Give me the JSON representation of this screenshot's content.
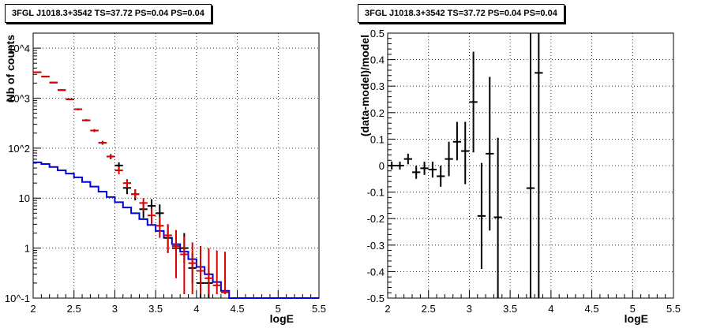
{
  "chart_data": [
    {
      "type": "line",
      "title": "3FGL J1018.3+3542 TS=37.72 PS=0.04 PS=0.04",
      "xlabel": "logE",
      "ylabel": "Nb of counts",
      "log_y": true,
      "xlim": [
        2,
        5.5
      ],
      "ylim": [
        0.1,
        20000
      ],
      "grid": true,
      "x_ticks": [
        "2",
        "2.5",
        "3",
        "3.5",
        "4",
        "4.5",
        "5",
        "5.5"
      ],
      "y_ticks": [
        "10^-1",
        "1",
        "10",
        "10^2",
        "10^3",
        "10^4"
      ],
      "series": [
        {
          "role": "model-step",
          "color": "#0000dd",
          "bin_edges": [
            2.0,
            2.1,
            2.2,
            2.3,
            2.4,
            2.5,
            2.6,
            2.7,
            2.8,
            2.9,
            3.0,
            3.1,
            3.2,
            3.3,
            3.4,
            3.5,
            3.6,
            3.7,
            3.8,
            3.9,
            4.0,
            4.1,
            4.2,
            4.3,
            4.4,
            4.5,
            4.6,
            4.7,
            4.8,
            4.9,
            5.0,
            5.1,
            5.2,
            5.3,
            5.4,
            5.5
          ],
          "values": [
            52,
            48,
            42,
            36,
            31,
            26,
            21,
            17,
            13.5,
            10.5,
            8.3,
            6.5,
            5.0,
            3.8,
            2.9,
            2.2,
            1.6,
            1.2,
            0.85,
            0.6,
            0.42,
            0.3,
            0.21,
            0.14,
            0.1,
            0.1,
            0.1,
            0.1,
            0.1,
            0.1,
            0.1,
            0.1,
            0.1,
            0.1,
            0.1
          ]
        },
        {
          "role": "data-points",
          "color": "#000000",
          "x": [
            2.05,
            2.15,
            2.25,
            2.35,
            2.45,
            2.55,
            2.65,
            2.75,
            2.85,
            2.95,
            3.05,
            3.15,
            3.25,
            3.35,
            3.45,
            3.55,
            3.65,
            3.75,
            3.85,
            3.95,
            4.05,
            4.15
          ],
          "y": [
            3300,
            2700,
            2050,
            1450,
            950,
            600,
            360,
            225,
            128,
            68,
            45,
            16,
            12,
            6,
            7,
            5,
            1.6,
            1.0,
            1.0,
            0.4,
            0.2,
            0.2
          ],
          "y_low": [
            3200,
            2620,
            1990,
            1400,
            920,
            575,
            342,
            211,
            117,
            60,
            38,
            12,
            9,
            4,
            4.8,
            3,
            0.8,
            0.5,
            0.5,
            0.2,
            0.1,
            0.1
          ],
          "y_high": [
            3400,
            2780,
            2110,
            1500,
            980,
            625,
            378,
            239,
            139,
            76,
            52,
            20,
            15,
            8,
            9.5,
            7.5,
            3,
            2,
            2,
            0.8,
            0.4,
            0.4
          ]
        },
        {
          "role": "model-points",
          "color": "#dd0000",
          "x": [
            2.05,
            2.15,
            2.25,
            2.35,
            2.45,
            2.55,
            2.65,
            2.75,
            2.85,
            2.95,
            3.05,
            3.15,
            3.25,
            3.35,
            3.45,
            3.55,
            3.65,
            3.75,
            3.85,
            3.95,
            4.05,
            4.15,
            4.25,
            4.35
          ],
          "y": [
            3300,
            2700,
            2050,
            1450,
            950,
            600,
            360,
            225,
            128,
            68,
            36,
            20,
            12,
            8,
            4.5,
            2.8,
            1.8,
            1.1,
            0.75,
            0.5,
            0.35,
            0.25,
            0.18,
            0.13
          ],
          "y_low": [
            3200,
            2620,
            1990,
            1400,
            920,
            575,
            342,
            211,
            117,
            60,
            30,
            16,
            10,
            5.5,
            3,
            1.6,
            0.8,
            0.25,
            0.12,
            0.12,
            0.12,
            0.12,
            0.12,
            0.12
          ],
          "y_high": [
            3400,
            2780,
            2110,
            1500,
            980,
            625,
            378,
            239,
            139,
            76,
            42,
            24,
            15,
            10,
            6.2,
            4.2,
            3,
            2.3,
            1.7,
            1.3,
            1.1,
            1.0,
            0.9,
            0.85
          ]
        }
      ]
    },
    {
      "type": "scatter",
      "title": "3FGL J1018.3+3542 TS=37.72 PS=0.04 PS=0.04",
      "xlabel": "logE",
      "ylabel": "(data-model)/model",
      "xlim": [
        2,
        5.5
      ],
      "ylim": [
        -0.5,
        0.5
      ],
      "grid": true,
      "x_ticks": [
        "2",
        "2.5",
        "3",
        "3.5",
        "4",
        "4.5",
        "5",
        "5.5"
      ],
      "y_ticks": [
        "-0.5",
        "-0.4",
        "-0.3",
        "-0.2",
        "-0.1",
        "0",
        "0.1",
        "0.2",
        "0.3",
        "0.4",
        "0.5"
      ],
      "series": [
        {
          "role": "residuals",
          "color": "#000000",
          "x": [
            2.05,
            2.15,
            2.25,
            2.35,
            2.45,
            2.55,
            2.65,
            2.75,
            2.85,
            2.95,
            3.05,
            3.15,
            3.25,
            3.35,
            3.75,
            3.85
          ],
          "y": [
            0.0,
            0.0,
            0.025,
            -0.025,
            -0.01,
            -0.015,
            -0.04,
            0.025,
            0.09,
            0.055,
            0.24,
            -0.19,
            0.045,
            -0.195,
            -0.085,
            0.35
          ],
          "y_low": [
            -0.015,
            -0.015,
            0.005,
            -0.05,
            -0.035,
            -0.045,
            -0.08,
            -0.04,
            0.02,
            -0.07,
            0.05,
            -0.39,
            -0.245,
            -0.5,
            -0.5,
            -0.5
          ],
          "y_high": [
            0.015,
            0.015,
            0.045,
            0.0,
            0.015,
            0.015,
            0.0,
            0.09,
            0.165,
            0.165,
            0.43,
            0.01,
            0.335,
            0.105,
            0.5,
            0.5
          ]
        }
      ]
    }
  ]
}
